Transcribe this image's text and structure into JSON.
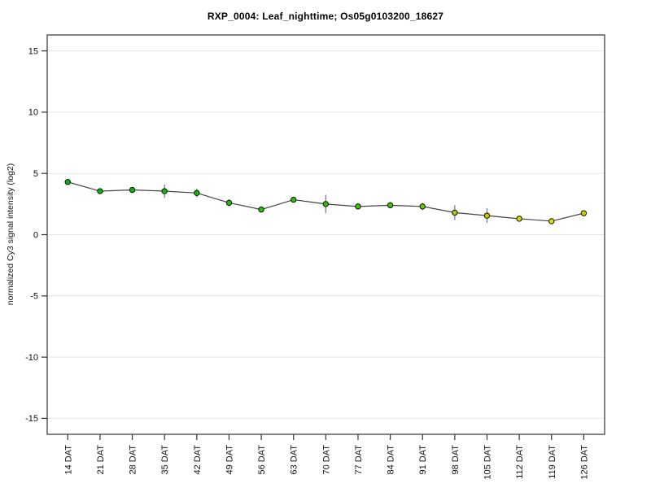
{
  "chart_data": {
    "type": "line",
    "title": "RXP_0004: Leaf_nighttime; Os05g0103200_18627",
    "xlabel": "",
    "ylabel": "normalized Cy3 signal intensity (log2)",
    "ylim": [
      -15,
      15
    ],
    "yticks": [
      15,
      10,
      5,
      0,
      -5,
      -10,
      -15
    ],
    "grid": true,
    "legend": "none",
    "categories": [
      "14 DAT",
      "21 DAT",
      "28 DAT",
      "35 DAT",
      "42 DAT",
      "49 DAT",
      "56 DAT",
      "63 DAT",
      "70 DAT",
      "77 DAT",
      "84 DAT",
      "91 DAT",
      "98 DAT",
      "105 DAT",
      "112 DAT",
      "119 DAT",
      "126 DAT"
    ],
    "series": [
      {
        "name": "normalized Cy3 signal intensity",
        "values": [
          4.3,
          3.55,
          3.65,
          3.55,
          3.4,
          2.6,
          2.05,
          2.85,
          2.5,
          2.3,
          2.4,
          2.3,
          1.8,
          1.55,
          1.3,
          1.1,
          1.75
        ],
        "errors": [
          0.1,
          0.15,
          0.1,
          0.55,
          0.35,
          0.3,
          0.1,
          0.15,
          0.75,
          0.1,
          0.25,
          0.3,
          0.6,
          0.6,
          0.15,
          0.1,
          0.1
        ],
        "point_colors": [
          "#00bb00",
          "#00bb00",
          "#00bb00",
          "#0abd00",
          "#0abd00",
          "#1fc100",
          "#2cc300",
          "#26c200",
          "#2cc300",
          "#3cc500",
          "#3cc500",
          "#66c800",
          "#aacc00",
          "#cccc00",
          "#d6d600",
          "#dddd00",
          "#d2d200"
        ]
      }
    ],
    "colors": {
      "line": "#444444",
      "error_bar": "#777777",
      "point_stroke": "#111111",
      "grid": "#e5e5e5",
      "axis": "#333333",
      "tick_label": "#111111",
      "background": "#ffffff"
    }
  }
}
